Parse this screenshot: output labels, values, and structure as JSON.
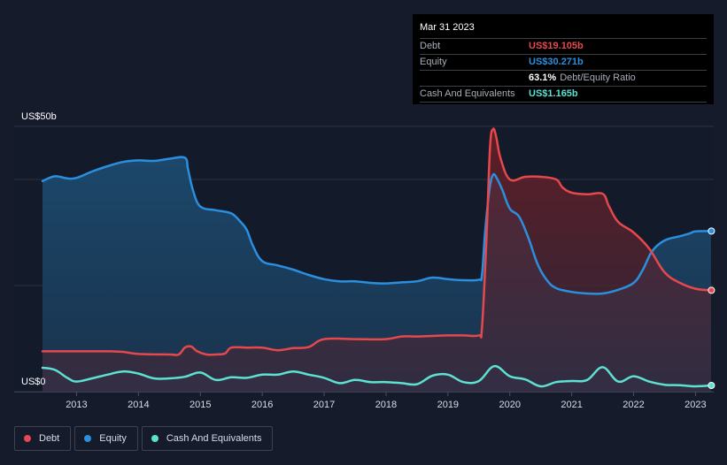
{
  "tooltip": {
    "date": "Mar 31 2023",
    "rows": [
      {
        "label": "Debt",
        "value": "US$19.105b",
        "color": "#e5484d"
      },
      {
        "label": "Equity",
        "value": "US$30.271b",
        "color": "#2b8fe0"
      },
      {
        "label": "",
        "value": "63.1%",
        "suffix": "Debt/Equity Ratio",
        "color": "#ffffff"
      },
      {
        "label": "Cash And Equivalents",
        "value": "US$1.165b",
        "color": "#5ce1d2"
      }
    ]
  },
  "legend": [
    {
      "label": "Debt",
      "color": "#e5484d"
    },
    {
      "label": "Equity",
      "color": "#2b8fe0"
    },
    {
      "label": "Cash And Equivalents",
      "color": "#5ce1d2"
    }
  ],
  "chart_data": {
    "type": "area",
    "y_top_label": "US$50b",
    "y_bottom_label": "US$0",
    "ylim": [
      0,
      50
    ],
    "xlim": [
      2012.45,
      2023.28
    ],
    "x_ticks": [
      2013,
      2014,
      2015,
      2016,
      2017,
      2018,
      2019,
      2020,
      2021,
      2022,
      2023
    ],
    "x_tick_labels": [
      "2013",
      "2014",
      "2015",
      "2016",
      "2017",
      "2018",
      "2019",
      "2020",
      "2021",
      "2022",
      "2023"
    ],
    "grid": true,
    "legend_position": "bottom-left",
    "series": [
      {
        "name": "Debt",
        "color": "#e5484d",
        "points": [
          [
            2012.45,
            7.6
          ],
          [
            2013.0,
            7.6
          ],
          [
            2013.5,
            7.6
          ],
          [
            2013.75,
            7.5
          ],
          [
            2014.0,
            7.1
          ],
          [
            2014.5,
            7.0
          ],
          [
            2014.65,
            7.0
          ],
          [
            2014.75,
            8.3
          ],
          [
            2014.85,
            8.5
          ],
          [
            2014.95,
            7.6
          ],
          [
            2015.1,
            7.0
          ],
          [
            2015.25,
            7.0
          ],
          [
            2015.4,
            7.2
          ],
          [
            2015.5,
            8.3
          ],
          [
            2015.75,
            8.3
          ],
          [
            2016.0,
            8.3
          ],
          [
            2016.25,
            7.8
          ],
          [
            2016.5,
            8.2
          ],
          [
            2016.75,
            8.4
          ],
          [
            2017.0,
            9.9
          ],
          [
            2017.5,
            9.9
          ],
          [
            2018.0,
            9.9
          ],
          [
            2018.25,
            10.4
          ],
          [
            2018.5,
            10.4
          ],
          [
            2018.75,
            10.5
          ],
          [
            2019.0,
            10.6
          ],
          [
            2019.25,
            10.6
          ],
          [
            2019.5,
            10.6
          ],
          [
            2019.55,
            12.0
          ],
          [
            2019.62,
            28.0
          ],
          [
            2019.68,
            46.0
          ],
          [
            2019.73,
            49.5
          ],
          [
            2019.78,
            48.0
          ],
          [
            2019.85,
            44.0
          ],
          [
            2020.0,
            40.0
          ],
          [
            2020.25,
            40.5
          ],
          [
            2020.5,
            40.5
          ],
          [
            2020.75,
            40.0
          ],
          [
            2020.85,
            38.5
          ],
          [
            2021.0,
            37.5
          ],
          [
            2021.25,
            37.2
          ],
          [
            2021.5,
            37.3
          ],
          [
            2021.6,
            35.0
          ],
          [
            2021.75,
            32.0
          ],
          [
            2022.0,
            30.0
          ],
          [
            2022.25,
            27.0
          ],
          [
            2022.5,
            22.5
          ],
          [
            2022.75,
            20.5
          ],
          [
            2023.0,
            19.4
          ],
          [
            2023.25,
            19.105
          ]
        ]
      },
      {
        "name": "Equity",
        "color": "#2b8fe0",
        "points": [
          [
            2012.45,
            39.7
          ],
          [
            2012.65,
            40.6
          ],
          [
            2012.85,
            40.2
          ],
          [
            2013.0,
            40.3
          ],
          [
            2013.25,
            41.5
          ],
          [
            2013.5,
            42.5
          ],
          [
            2013.75,
            43.3
          ],
          [
            2014.0,
            43.6
          ],
          [
            2014.25,
            43.5
          ],
          [
            2014.5,
            43.9
          ],
          [
            2014.75,
            44.1
          ],
          [
            2014.8,
            42.0
          ],
          [
            2014.88,
            38.0
          ],
          [
            2015.0,
            34.9
          ],
          [
            2015.25,
            34.2
          ],
          [
            2015.5,
            33.6
          ],
          [
            2015.65,
            32.0
          ],
          [
            2015.75,
            30.5
          ],
          [
            2015.85,
            27.5
          ],
          [
            2016.0,
            24.6
          ],
          [
            2016.25,
            23.8
          ],
          [
            2016.5,
            23.0
          ],
          [
            2016.75,
            22.0
          ],
          [
            2017.0,
            21.2
          ],
          [
            2017.25,
            20.8
          ],
          [
            2017.5,
            20.8
          ],
          [
            2017.75,
            20.5
          ],
          [
            2018.0,
            20.4
          ],
          [
            2018.25,
            20.6
          ],
          [
            2018.5,
            20.8
          ],
          [
            2018.75,
            21.5
          ],
          [
            2019.0,
            21.2
          ],
          [
            2019.25,
            21.0
          ],
          [
            2019.5,
            21.1
          ],
          [
            2019.55,
            22.0
          ],
          [
            2019.6,
            30.0
          ],
          [
            2019.67,
            38.0
          ],
          [
            2019.73,
            40.9
          ],
          [
            2019.8,
            40.0
          ],
          [
            2019.88,
            38.0
          ],
          [
            2020.0,
            34.5
          ],
          [
            2020.15,
            33.0
          ],
          [
            2020.3,
            29.0
          ],
          [
            2020.45,
            24.0
          ],
          [
            2020.6,
            21.0
          ],
          [
            2020.75,
            19.5
          ],
          [
            2021.0,
            18.8
          ],
          [
            2021.25,
            18.5
          ],
          [
            2021.5,
            18.5
          ],
          [
            2021.75,
            19.2
          ],
          [
            2022.0,
            20.5
          ],
          [
            2022.15,
            23.0
          ],
          [
            2022.3,
            26.5
          ],
          [
            2022.5,
            28.5
          ],
          [
            2022.75,
            29.3
          ],
          [
            2022.9,
            29.8
          ],
          [
            2023.0,
            30.2
          ],
          [
            2023.25,
            30.271
          ]
        ]
      },
      {
        "name": "Cash And Equivalents",
        "color": "#5ce1d2",
        "points": [
          [
            2012.45,
            4.5
          ],
          [
            2012.65,
            4.1
          ],
          [
            2012.85,
            2.6
          ],
          [
            2013.0,
            1.9
          ],
          [
            2013.25,
            2.5
          ],
          [
            2013.5,
            3.2
          ],
          [
            2013.75,
            3.8
          ],
          [
            2014.0,
            3.4
          ],
          [
            2014.25,
            2.5
          ],
          [
            2014.5,
            2.5
          ],
          [
            2014.75,
            2.8
          ],
          [
            2015.0,
            3.6
          ],
          [
            2015.25,
            2.2
          ],
          [
            2015.5,
            2.7
          ],
          [
            2015.75,
            2.6
          ],
          [
            2016.0,
            3.2
          ],
          [
            2016.25,
            3.2
          ],
          [
            2016.5,
            3.8
          ],
          [
            2016.75,
            3.2
          ],
          [
            2017.0,
            2.6
          ],
          [
            2017.25,
            1.6
          ],
          [
            2017.5,
            2.2
          ],
          [
            2017.75,
            1.8
          ],
          [
            2018.0,
            1.8
          ],
          [
            2018.25,
            1.6
          ],
          [
            2018.5,
            1.4
          ],
          [
            2018.75,
            3.0
          ],
          [
            2019.0,
            3.2
          ],
          [
            2019.25,
            1.8
          ],
          [
            2019.5,
            2.0
          ],
          [
            2019.75,
            4.8
          ],
          [
            2020.0,
            2.9
          ],
          [
            2020.25,
            2.3
          ],
          [
            2020.5,
            1.0
          ],
          [
            2020.75,
            1.8
          ],
          [
            2021.0,
            2.0
          ],
          [
            2021.25,
            2.2
          ],
          [
            2021.5,
            4.6
          ],
          [
            2021.75,
            1.9
          ],
          [
            2022.0,
            2.9
          ],
          [
            2022.25,
            1.9
          ],
          [
            2022.5,
            1.3
          ],
          [
            2022.75,
            1.2
          ],
          [
            2023.0,
            1.0
          ],
          [
            2023.25,
            1.165
          ]
        ]
      }
    ]
  }
}
